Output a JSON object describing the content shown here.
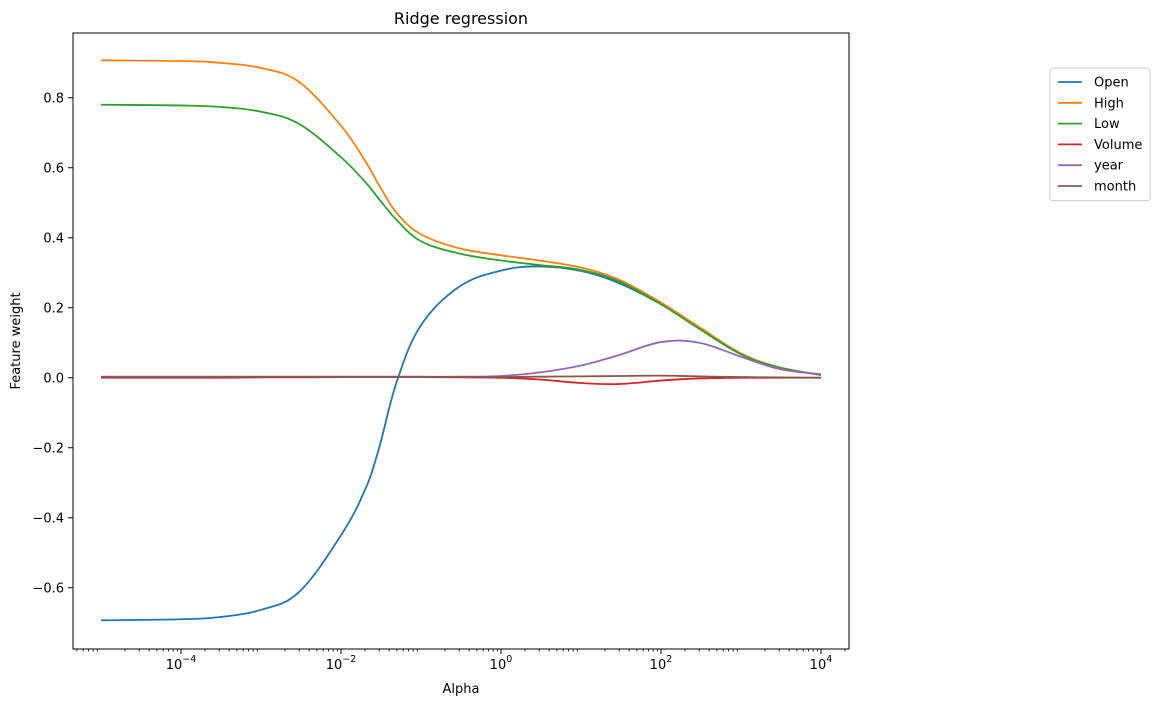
{
  "chart_data": {
    "type": "line",
    "title": "Ridge regression",
    "xlabel": "Alpha",
    "ylabel": "Feature weight",
    "xscale": "log",
    "xlim": [
      4.47e-06,
      22400
    ],
    "ylim": [
      -0.775,
      0.985
    ],
    "grid": false,
    "legend_placement": "outside-right-top",
    "x_ticks": [
      {
        "value": 0.0001,
        "base": "10",
        "exp": "−4"
      },
      {
        "value": 0.01,
        "base": "10",
        "exp": "−2"
      },
      {
        "value": 1,
        "base": "10",
        "exp": "0"
      },
      {
        "value": 100,
        "base": "10",
        "exp": "2"
      },
      {
        "value": 10000,
        "base": "10",
        "exp": "4"
      }
    ],
    "y_ticks": [
      {
        "value": -0.6,
        "label": "−0.6"
      },
      {
        "value": -0.4,
        "label": "−0.4"
      },
      {
        "value": -0.2,
        "label": "−0.2"
      },
      {
        "value": 0.0,
        "label": "0.0"
      },
      {
        "value": 0.2,
        "label": "0.2"
      },
      {
        "value": 0.4,
        "label": "0.4"
      },
      {
        "value": 0.6,
        "label": "0.6"
      },
      {
        "value": 0.8,
        "label": "0.8"
      }
    ],
    "x": [
      1e-05,
      0.0001,
      0.0003,
      0.001,
      0.003,
      0.01,
      0.02,
      0.03,
      0.05,
      0.1,
      0.3,
      1,
      3,
      10,
      30,
      100,
      300,
      1000,
      3000,
      10000
    ],
    "series": [
      {
        "name": "Open",
        "color": "#1f77b4",
        "values": [
          -0.693,
          -0.69,
          -0.684,
          -0.663,
          -0.612,
          -0.45,
          -0.32,
          -0.2,
          -0.01,
          0.15,
          0.26,
          0.306,
          0.318,
          0.305,
          0.27,
          0.21,
          0.142,
          0.068,
          0.03,
          0.008
        ]
      },
      {
        "name": "High",
        "color": "#ff7f0e",
        "values": [
          0.907,
          0.905,
          0.9,
          0.885,
          0.845,
          0.72,
          0.62,
          0.55,
          0.47,
          0.41,
          0.37,
          0.35,
          0.335,
          0.315,
          0.28,
          0.215,
          0.145,
          0.07,
          0.03,
          0.008
        ]
      },
      {
        "name": "Low",
        "color": "#2ca02c",
        "values": [
          0.78,
          0.778,
          0.774,
          0.76,
          0.725,
          0.63,
          0.56,
          0.51,
          0.45,
          0.39,
          0.355,
          0.335,
          0.322,
          0.308,
          0.275,
          0.21,
          0.14,
          0.067,
          0.029,
          0.008
        ]
      },
      {
        "name": "Volume",
        "color": "#d62728",
        "values": [
          0.0,
          0.0,
          0.0,
          0.001,
          0.001,
          0.002,
          0.002,
          0.002,
          0.002,
          0.002,
          0.001,
          0.0,
          -0.005,
          -0.015,
          -0.018,
          -0.008,
          -0.002,
          0.0,
          0.0,
          0.0
        ]
      },
      {
        "name": "year",
        "color": "#9467bd",
        "values": [
          0.003,
          0.003,
          0.003,
          0.003,
          0.003,
          0.003,
          0.003,
          0.003,
          0.003,
          0.003,
          0.003,
          0.005,
          0.015,
          0.035,
          0.065,
          0.102,
          0.1,
          0.06,
          0.025,
          0.01
        ]
      },
      {
        "name": "month",
        "color": "#8c564b",
        "values": [
          0.002,
          0.002,
          0.002,
          0.002,
          0.002,
          0.002,
          0.002,
          0.002,
          0.002,
          0.002,
          0.002,
          0.002,
          0.003,
          0.004,
          0.005,
          0.006,
          0.004,
          0.002,
          0.001,
          0.0
        ]
      }
    ]
  }
}
